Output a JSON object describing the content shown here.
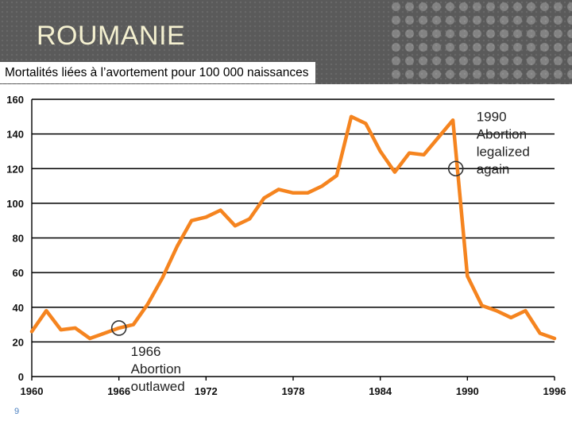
{
  "slide": {
    "title": "ROUMANIE",
    "subtitle": "Mortalités liées à l’avortement pour 100 000 naissances",
    "page_number": "9"
  },
  "chart_data": {
    "type": "line",
    "title": "",
    "xlabel": "",
    "ylabel": "",
    "xlim": [
      1960,
      1996
    ],
    "ylim": [
      0,
      160
    ],
    "x_ticks": [
      "1960",
      "1966",
      "1972",
      "1978",
      "1984",
      "1990",
      "1996"
    ],
    "y_ticks": [
      "160",
      "140",
      "120",
      "100",
      "80",
      "60",
      "40",
      "20",
      "0"
    ],
    "grid": "horizontal",
    "line_color": "#f5841f",
    "series": [
      {
        "name": "",
        "x": [
          1960,
          1961,
          1962,
          1963,
          1964,
          1965,
          1966,
          1967,
          1968,
          1969,
          1970,
          1971,
          1972,
          1973,
          1974,
          1975,
          1976,
          1977,
          1978,
          1979,
          1980,
          1981,
          1982,
          1983,
          1984,
          1985,
          1986,
          1987,
          1988,
          1989,
          1990,
          1991,
          1992,
          1993,
          1994,
          1995,
          1996
        ],
        "y": [
          26,
          38,
          27,
          28,
          22,
          25,
          28,
          30,
          42,
          57,
          75,
          90,
          92,
          96,
          87,
          91,
          103,
          108,
          106,
          106,
          110,
          116,
          150,
          146,
          130,
          118,
          129,
          128,
          138,
          148,
          58,
          41,
          38,
          34,
          38,
          25,
          22
        ]
      }
    ],
    "annotations": [
      {
        "x": 1966,
        "y": 28,
        "lines": [
          "1966",
          "Abortion",
          "outlawed"
        ]
      },
      {
        "x": 1989.2,
        "y": 120,
        "lines": [
          "1990",
          "Abortion",
          "legalized",
          "again"
        ]
      }
    ]
  }
}
